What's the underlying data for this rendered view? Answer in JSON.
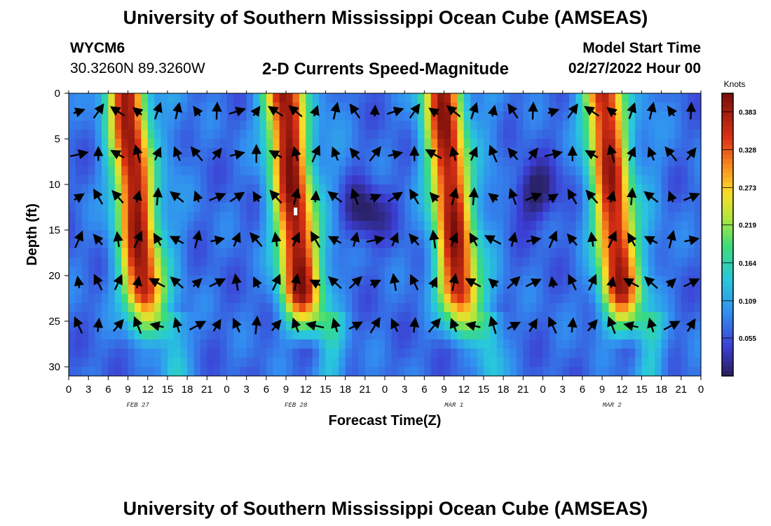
{
  "header": {
    "title_top": "University of Southern Mississippi Ocean Cube (AMSEAS)",
    "station_id": "WYCM6",
    "station_coords": "30.3260N  89.3260W",
    "chart_subtitle": "2-D Currents Speed-Magnitude",
    "model_start_label": "Model Start Time",
    "model_start_value": "02/27/2022 Hour 00",
    "title_bottom": "University of Southern Mississippi Ocean Cube (AMSEAS)"
  },
  "chart_data": {
    "type": "heatmap",
    "title": "2-D Currents Speed-Magnitude",
    "xlabel": "Forecast Time(Z)",
    "ylabel": "Depth (ft)",
    "x_range_hours": [
      0,
      96
    ],
    "y_range_ft": [
      0,
      31
    ],
    "x_tick_labels": [
      "0",
      "3",
      "6",
      "9",
      "12",
      "15",
      "18",
      "21",
      "0",
      "3",
      "6",
      "9",
      "12",
      "15",
      "18",
      "21",
      "0",
      "3",
      "6",
      "9",
      "12",
      "15",
      "18",
      "21",
      "0",
      "3",
      "6",
      "9",
      "12",
      "15",
      "18",
      "21",
      "0"
    ],
    "y_ticks": [
      0,
      5,
      10,
      15,
      20,
      25,
      30
    ],
    "date_labels": [
      {
        "label": "FEB 27",
        "hour": 10.5
      },
      {
        "label": "FEB 28",
        "hour": 34.5
      },
      {
        "label": "MAR 1",
        "hour": 58.5
      },
      {
        "label": "MAR 2",
        "hour": 82.5
      }
    ],
    "colorbar": {
      "units": "Knots",
      "min": 0.0,
      "max": 0.41,
      "tick_values": [
        "0.383",
        "0.328",
        "0.273",
        "0.219",
        "0.164",
        "0.109",
        "0.055"
      ]
    },
    "high_speed_bands_hours": [
      {
        "center": 10.5,
        "value": 0.39
      },
      {
        "center": 34.5,
        "value": 0.4
      },
      {
        "center": 58.5,
        "value": 0.39
      },
      {
        "center": 83.0,
        "value": 0.38
      }
    ],
    "low_speed_zones": [
      {
        "center_hour": 45.0,
        "center_ft": 13,
        "value": 0.02
      },
      {
        "center_hour": 71.0,
        "center_ft": 11,
        "value": 0.01
      }
    ]
  }
}
